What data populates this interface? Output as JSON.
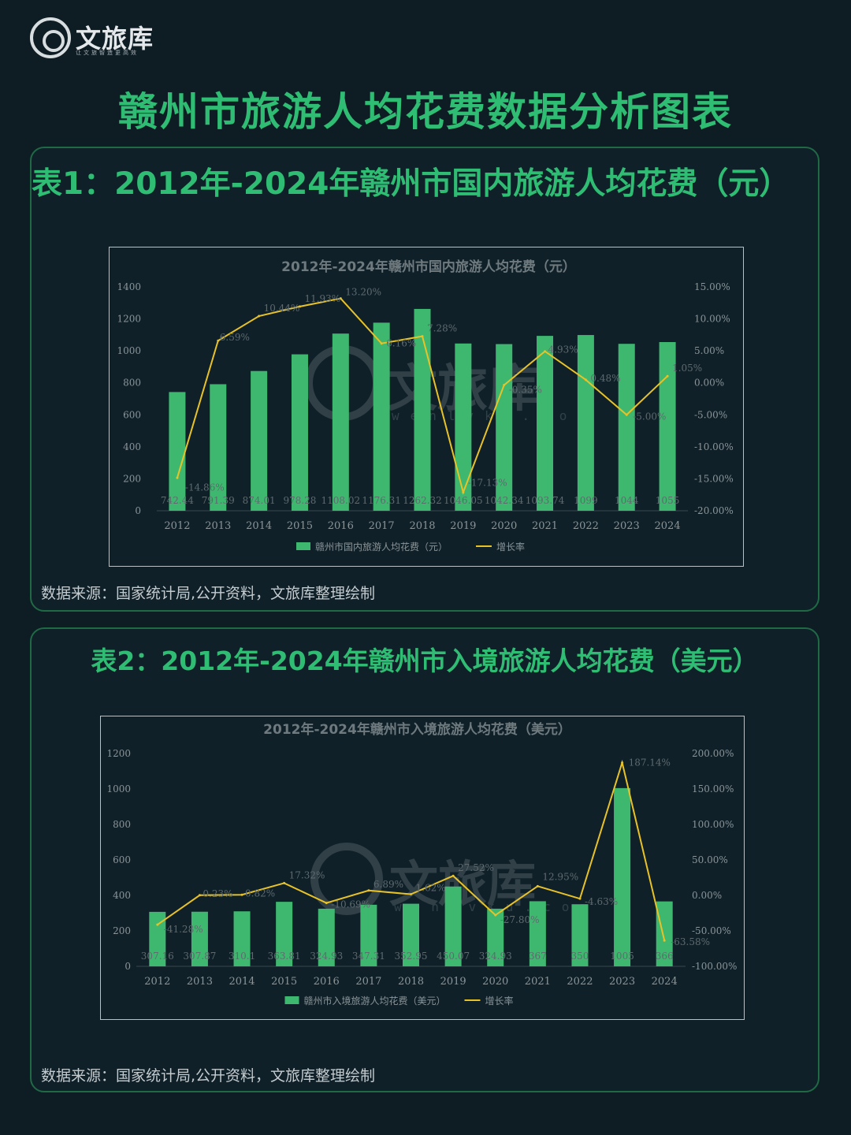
{
  "brand": {
    "name": "文旅库",
    "slogan": "让文旅智造更高效",
    "watermark_name": "文旅库",
    "watermark_url": "wenlvku.com"
  },
  "page": {
    "title": "赣州市旅游人均花费数据分析图表"
  },
  "colors": {
    "background": "#0e1d24",
    "accent": "#2fbd73",
    "bar": "#3fb86f",
    "line": "#e8c227"
  },
  "panels": [
    {
      "title": "表1：2012年-2024年赣州市国内旅游人均花费（元）",
      "source": "数据来源：国家统计局,公开资料，文旅库整理绘制"
    },
    {
      "title": "表2：2012年-2024年赣州市入境旅游人均花费（美元）",
      "source": "数据来源：国家统计局,公开资料，文旅库整理绘制"
    }
  ],
  "chart_data": [
    {
      "type": "bar",
      "title": "2012年-2024年赣州市国内旅游人均花费（元）",
      "categories": [
        "2012",
        "2013",
        "2014",
        "2015",
        "2016",
        "2017",
        "2018",
        "2019",
        "2020",
        "2021",
        "2022",
        "2023",
        "2024"
      ],
      "series": [
        {
          "name": "赣州市国内旅游人均花费（元）",
          "axis": "left",
          "values": [
            742.44,
            791.39,
            874.01,
            978.28,
            1108.02,
            1176.31,
            1262.32,
            1046.05,
            1042.34,
            1093.74,
            1099,
            1044,
            1055
          ],
          "labels": [
            "742.44",
            "791.39",
            "874.01",
            "978.28",
            "1108.02",
            "1176.31",
            "1262.32",
            "1046.05",
            "1042.34",
            "1093.74",
            "1099",
            "1044",
            "1055"
          ]
        },
        {
          "name": "增长率",
          "type": "line",
          "axis": "right",
          "values": [
            -14.86,
            6.59,
            10.44,
            11.93,
            13.2,
            6.16,
            7.28,
            -17.13,
            -0.35,
            4.93,
            0.48,
            -5.0,
            1.05
          ],
          "labels": [
            "-14.86%",
            "6.59%",
            "10.44%",
            "11.93%",
            "13.20%",
            "6.16%",
            "7.28%",
            "-17.13%",
            "-0.35%",
            "4.93%",
            "0.48%",
            "-5.00%",
            "1.05%"
          ]
        }
      ],
      "ylim": [
        0,
        1400
      ],
      "yticks": [
        "0",
        "200",
        "400",
        "600",
        "800",
        "1000",
        "1200",
        "1400"
      ],
      "y2lim": [
        -20,
        15
      ],
      "y2ticks": [
        "-20.00%",
        "-15.00%",
        "-10.00%",
        "-5.00%",
        "0.00%",
        "5.00%",
        "10.00%",
        "15.00%"
      ],
      "legend": "bottom",
      "grid": false
    },
    {
      "type": "bar",
      "title": "2012年-2024年赣州市入境旅游人均花费（美元）",
      "categories": [
        "2012",
        "2013",
        "2014",
        "2015",
        "2016",
        "2017",
        "2018",
        "2019",
        "2020",
        "2021",
        "2022",
        "2023",
        "2024"
      ],
      "series": [
        {
          "name": "赣州市入境旅游人均花费（美元）",
          "axis": "left",
          "values": [
            307.16,
            307.87,
            310.1,
            363.81,
            324.93,
            347.31,
            352.95,
            450.07,
            324.93,
            367,
            350,
            1005,
            366
          ],
          "labels": [
            "307.16",
            "307.87",
            "310.1",
            "363.81",
            "324.93",
            "347.31",
            "352.95",
            "450.07",
            "324.93",
            "367",
            "350",
            "1005",
            "366"
          ]
        },
        {
          "name": "增长率",
          "type": "line",
          "axis": "right",
          "values": [
            -41.28,
            0.23,
            0.82,
            17.32,
            -10.69,
            6.89,
            1.62,
            27.52,
            -27.8,
            12.95,
            -4.63,
            187.14,
            -63.58
          ],
          "labels": [
            "-41.28%",
            "0.23%",
            "0.82%",
            "17.32%",
            "-10.69%",
            "6.89%",
            "1.62%",
            "27.52%",
            "-27.80%",
            "12.95%",
            "-4.63%",
            "187.14%",
            "-63.58%"
          ]
        }
      ],
      "ylim": [
        0,
        1200
      ],
      "yticks": [
        "0",
        "200",
        "400",
        "600",
        "800",
        "1000",
        "1200"
      ],
      "y2lim": [
        -100,
        200
      ],
      "y2ticks": [
        "-100.00%",
        "-50.00%",
        "0.00%",
        "50.00%",
        "100.00%",
        "150.00%",
        "200.00%"
      ],
      "legend": "bottom",
      "grid": false
    }
  ]
}
